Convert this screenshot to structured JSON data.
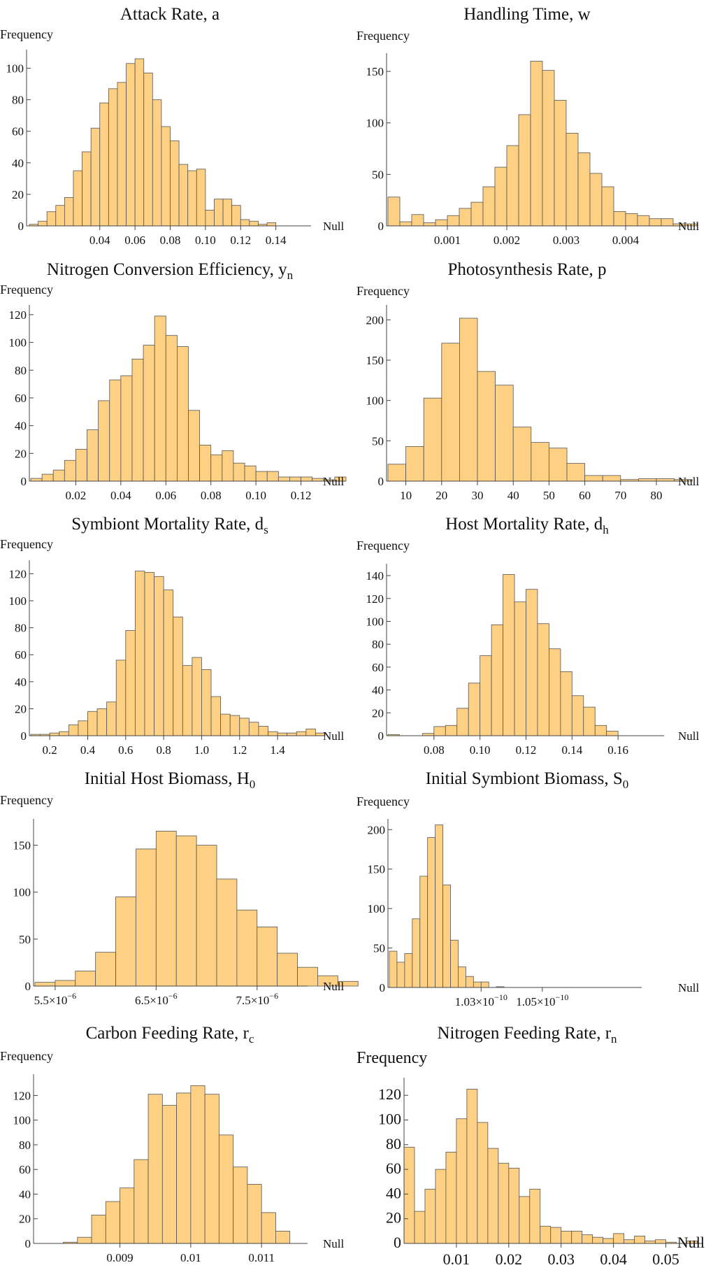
{
  "chart_data": [
    {
      "type": "bar",
      "title": "Attack Rate, a",
      "ylabel": "Frequency",
      "xlabel": "Null",
      "ylim": [
        0,
        110
      ],
      "yticks": [
        0,
        20,
        40,
        60,
        80,
        100
      ],
      "xlim": [
        0.0,
        0.16
      ],
      "xticks": [
        {
          "v": 0.04,
          "label": "0.04"
        },
        {
          "v": 0.06,
          "label": "0.06"
        },
        {
          "v": 0.08,
          "label": "0.08"
        },
        {
          "v": 0.1,
          "label": "0.10"
        },
        {
          "v": 0.12,
          "label": "0.12"
        },
        {
          "v": 0.14,
          "label": "0.14"
        }
      ],
      "bin_start": 0.0,
      "bin_width": 0.005,
      "values": [
        1,
        3,
        9,
        13,
        18,
        35,
        47,
        62,
        78,
        87,
        91,
        103,
        106,
        97,
        80,
        63,
        54,
        39,
        35,
        36,
        10,
        17,
        17,
        13,
        4,
        3,
        1,
        2
      ]
    },
    {
      "type": "bar",
      "title": "Handling Time, w",
      "ylabel": "Frequency",
      "xlabel": "Null",
      "ylim": [
        0,
        165
      ],
      "yticks": [
        0,
        50,
        100,
        150
      ],
      "xlim": [
        0.0,
        0.005
      ],
      "xticks": [
        {
          "v": 0.001,
          "label": "0.001"
        },
        {
          "v": 0.002,
          "label": "0.002"
        },
        {
          "v": 0.003,
          "label": "0.003"
        },
        {
          "v": 0.004,
          "label": "0.004"
        }
      ],
      "bin_start": 0.0,
      "bin_width": 0.0002,
      "values": [
        28,
        4,
        11,
        3,
        6,
        10,
        17,
        23,
        38,
        57,
        78,
        108,
        160,
        151,
        122,
        90,
        71,
        51,
        38,
        14,
        12,
        10,
        7,
        7,
        2,
        2
      ]
    },
    {
      "type": "bar",
      "title": "Nitrogen Conversion Efficiency, y",
      "title_sub": "n",
      "ylabel": "Frequency",
      "xlabel": "Null",
      "ylim": [
        0,
        125
      ],
      "yticks": [
        0,
        20,
        40,
        60,
        80,
        100,
        120
      ],
      "xlim": [
        0.0,
        0.14
      ],
      "xticks": [
        {
          "v": 0.02,
          "label": "0.02"
        },
        {
          "v": 0.04,
          "label": "0.04"
        },
        {
          "v": 0.06,
          "label": "0.06"
        },
        {
          "v": 0.08,
          "label": "0.08"
        },
        {
          "v": 0.1,
          "label": "0.10"
        },
        {
          "v": 0.12,
          "label": "0.12"
        }
      ],
      "bin_start": 0.0,
      "bin_width": 0.005,
      "values": [
        2,
        5,
        8,
        15,
        23,
        37,
        58,
        73,
        76,
        88,
        98,
        119,
        105,
        97,
        51,
        26,
        19,
        22,
        13,
        11,
        7,
        7,
        3,
        3,
        3,
        2,
        1,
        3
      ]
    },
    {
      "type": "bar",
      "title": "Photosynthesis Rate, p",
      "ylabel": "Frequency",
      "xlabel": "Null",
      "ylim": [
        0,
        215
      ],
      "yticks": [
        0,
        50,
        100,
        150,
        200
      ],
      "xlim": [
        5,
        88
      ],
      "xticks": [
        {
          "v": 10,
          "label": "10"
        },
        {
          "v": 20,
          "label": "20"
        },
        {
          "v": 30,
          "label": "30"
        },
        {
          "v": 40,
          "label": "40"
        },
        {
          "v": 50,
          "label": "50"
        },
        {
          "v": 60,
          "label": "60"
        },
        {
          "v": 70,
          "label": "70"
        },
        {
          "v": 80,
          "label": "80"
        }
      ],
      "bin_start": 5,
      "bin_width": 5,
      "values": [
        21,
        43,
        103,
        171,
        202,
        136,
        119,
        67,
        48,
        41,
        22,
        7,
        7,
        2,
        3,
        3,
        2
      ]
    },
    {
      "type": "bar",
      "title": "Symbiont Mortality Rate,  d",
      "title_sub": "s",
      "ylabel": "Frequency",
      "xlabel": "Null",
      "ylim": [
        0,
        128
      ],
      "yticks": [
        0,
        20,
        40,
        60,
        80,
        100,
        120
      ],
      "xlim": [
        0.1,
        1.65
      ],
      "xticks": [
        {
          "v": 0.2,
          "label": "0.2"
        },
        {
          "v": 0.4,
          "label": "0.4"
        },
        {
          "v": 0.6,
          "label": "0.6"
        },
        {
          "v": 0.8,
          "label": "0.8"
        },
        {
          "v": 1.0,
          "label": "1.0"
        },
        {
          "v": 1.2,
          "label": "1.2"
        },
        {
          "v": 1.4,
          "label": "1.4"
        }
      ],
      "bin_start": 0.1,
      "bin_width": 0.05,
      "values": [
        1,
        1,
        2,
        3,
        8,
        11,
        18,
        20,
        25,
        56,
        78,
        122,
        121,
        118,
        108,
        88,
        52,
        58,
        49,
        29,
        16,
        15,
        13,
        10,
        7,
        3,
        2,
        2,
        3,
        5,
        2
      ]
    },
    {
      "type": "bar",
      "title": "Host Mortality Rate,  d",
      "title_sub": "h",
      "ylabel": "Frequency",
      "xlabel": "Null",
      "ylim": [
        0,
        148
      ],
      "yticks": [
        0,
        20,
        40,
        60,
        80,
        100,
        120,
        140
      ],
      "xlim": [
        0.06,
        0.18
      ],
      "xticks": [
        {
          "v": 0.08,
          "label": "0.08"
        },
        {
          "v": 0.1,
          "label": "0.10"
        },
        {
          "v": 0.12,
          "label": "0.12"
        },
        {
          "v": 0.14,
          "label": "0.14"
        },
        {
          "v": 0.16,
          "label": "0.16"
        }
      ],
      "bin_start": 0.06,
      "bin_width": 0.005,
      "values": [
        1,
        0,
        0,
        2,
        8,
        9,
        24,
        46,
        70,
        97,
        141,
        117,
        128,
        98,
        76,
        56,
        35,
        25,
        9,
        4
      ]
    },
    {
      "type": "bar",
      "title": "Initial Host Biomass,  H",
      "title_sub": "0",
      "ylabel": "Frequency",
      "xlabel": "Null",
      "ylim": [
        0,
        175
      ],
      "yticks": [
        0,
        50,
        100,
        150
      ],
      "xlim": [
        5.3e-06,
        8e-06
      ],
      "xticks": [
        {
          "v": 5.5e-06,
          "label": "5.5×10",
          "exp": "−6"
        },
        {
          "v": 6.5e-06,
          "label": "6.5×10",
          "exp": "−6"
        },
        {
          "v": 7.5e-06,
          "label": "7.5×10",
          "exp": "−6"
        }
      ],
      "bin_start": 5.3e-06,
      "bin_width": 2e-07,
      "values": [
        4,
        6,
        16,
        36,
        95,
        146,
        165,
        160,
        150,
        114,
        81,
        63,
        35,
        20,
        11,
        5
      ]
    },
    {
      "type": "bar",
      "title": "Initial Symbiont Biomass,  S",
      "title_sub": "0",
      "ylabel": "Frequency",
      "xlabel": "Null",
      "ylim": [
        0,
        210
      ],
      "yticks": [
        0,
        50,
        100,
        150,
        200
      ],
      "xlim": [
        1e-10,
        1.0825e-10
      ],
      "xticks": [
        {
          "v": 1.03e-10,
          "label": "1.03×10",
          "exp": "−10"
        },
        {
          "v": 1.05e-10,
          "label": "1.05×10",
          "exp": "−10"
        }
      ],
      "bin_start": 1e-10,
      "bin_width": 2.5e-13,
      "values": [
        46,
        32,
        43,
        87,
        141,
        190,
        206,
        130,
        60,
        26,
        14,
        7,
        7,
        0,
        1
      ]
    },
    {
      "type": "bar",
      "title": "Carbon Feeding Rate,  r",
      "title_sub": "c",
      "ylabel": "Frequency",
      "xlabel": "Null",
      "ylim": [
        0,
        135
      ],
      "yticks": [
        0,
        20,
        40,
        60,
        80,
        100,
        120
      ],
      "xlim": [
        0.0078,
        0.01165
      ],
      "xticks": [
        {
          "v": 0.009,
          "label": "0.009"
        },
        {
          "v": 0.01,
          "label": "0.01"
        },
        {
          "v": 0.011,
          "label": "0.011"
        }
      ],
      "bin_start": 0.0078,
      "bin_width": 0.0002,
      "values": [
        0,
        0,
        1,
        5,
        23,
        34,
        45,
        68,
        121,
        112,
        122,
        128,
        121,
        88,
        62,
        48,
        25,
        10
      ]
    },
    {
      "type": "bar",
      "title": "Nitrogen Feeding Rate,  r",
      "title_sub": "n",
      "ylabel": "Frequency",
      "xlabel": "Null",
      "ylim": [
        0,
        132
      ],
      "yticks": [
        0,
        20,
        40,
        60,
        80,
        100,
        120
      ],
      "xlim": [
        0.0,
        0.057
      ],
      "xticks": [
        {
          "v": 0.01,
          "label": "0.01"
        },
        {
          "v": 0.02,
          "label": "0.02"
        },
        {
          "v": 0.03,
          "label": "0.03"
        },
        {
          "v": 0.04,
          "label": "0.04"
        },
        {
          "v": 0.05,
          "label": "0.05"
        }
      ],
      "bin_start": 0.0,
      "bin_width": 0.002,
      "values": [
        78,
        26,
        44,
        60,
        74,
        101,
        125,
        98,
        77,
        65,
        61,
        38,
        44,
        14,
        13,
        10,
        10,
        7,
        5,
        4,
        8,
        3,
        6,
        2,
        3,
        1,
        0,
        2
      ]
    }
  ]
}
